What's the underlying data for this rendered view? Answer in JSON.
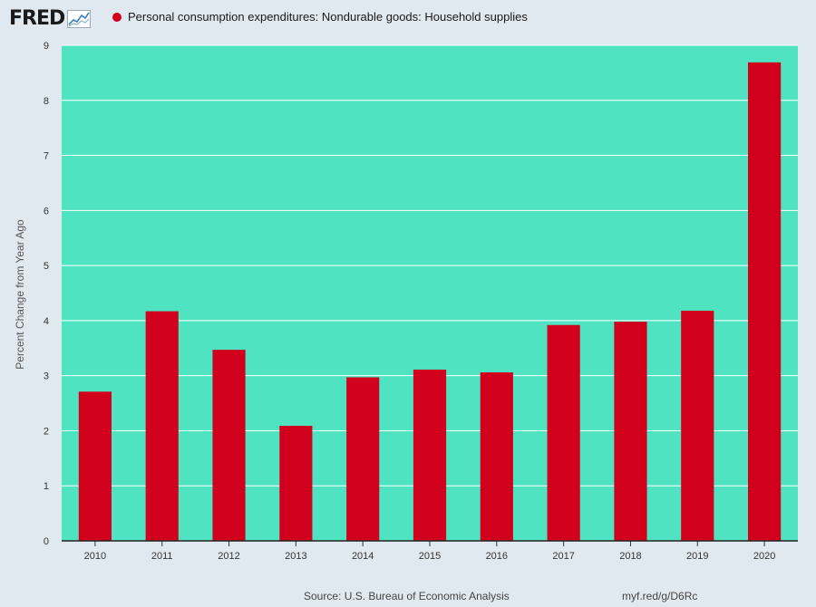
{
  "header": {
    "logo_text": "FRED",
    "logo_icon": "trend-line-icon",
    "legend_label": "Personal consumption expenditures: Nondurable goods: Household supplies"
  },
  "footer": {
    "source": "Source: U.S. Bureau of Economic Analysis",
    "url": "myf.red/g/D6Rc"
  },
  "colors": {
    "plot_background": "#50e3c2",
    "bar": "#d1001c",
    "page_background": "#e1e9f0"
  },
  "chart_data": {
    "type": "bar",
    "title": "",
    "xlabel": "",
    "ylabel": "Percent Change from Year Ago",
    "categories": [
      "2010",
      "2011",
      "2012",
      "2013",
      "2014",
      "2015",
      "2016",
      "2017",
      "2018",
      "2019",
      "2020"
    ],
    "series": [
      {
        "name": "Personal consumption expenditures: Nondurable goods: Household supplies",
        "values": [
          2.71,
          4.17,
          3.47,
          2.09,
          2.97,
          3.11,
          3.06,
          3.92,
          3.98,
          4.18,
          8.69
        ]
      }
    ],
    "ylim": [
      0,
      9
    ],
    "yticks": [
      0,
      1,
      2,
      3,
      4,
      5,
      6,
      7,
      8,
      9
    ],
    "grid": true,
    "legend": "top-left"
  }
}
